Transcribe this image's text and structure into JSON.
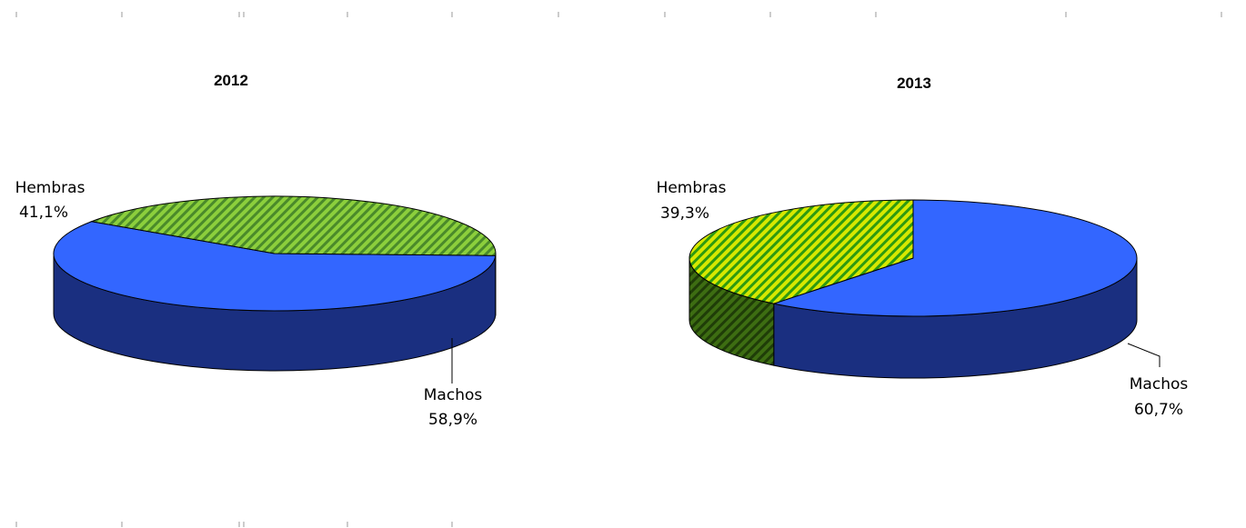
{
  "chart_data": [
    {
      "type": "pie",
      "title": "2012",
      "slices": [
        {
          "label": "Machos",
          "percent_label": "58,9%",
          "value": 58.9,
          "color": "#3366ff",
          "side_color": "#1a2f80",
          "pattern": false
        },
        {
          "label": "Hembras",
          "percent_label": "41,1%",
          "value": 41.1,
          "color": "#7fbf3f",
          "side_color": "#3a5f2a",
          "pattern": true
        }
      ]
    },
    {
      "type": "pie",
      "title": "2013",
      "slices": [
        {
          "label": "Machos",
          "percent_label": "60,7%",
          "value": 60.7,
          "color": "#3366ff",
          "side_color": "#1a2f80",
          "pattern": false
        },
        {
          "label": "Hembras",
          "percent_label": "39,3%",
          "value": 39.3,
          "color": "#55c21e",
          "side_color": "#3a6a14",
          "pattern": true
        }
      ]
    }
  ]
}
